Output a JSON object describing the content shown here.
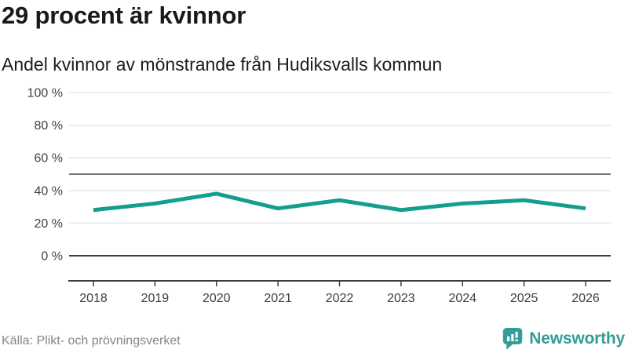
{
  "header": {
    "title": "29 procent är kvinnor",
    "subtitle": "Andel kvinnor av mönstrande från Hudiksvalls kommun"
  },
  "chart_data": {
    "type": "line",
    "title": "29 procent är kvinnor",
    "subtitle": "Andel kvinnor av mönstrande från Hudiksvalls kommun",
    "categories": [
      "2018",
      "2019",
      "2020",
      "2021",
      "2022",
      "2023",
      "2024",
      "2025",
      "2026"
    ],
    "series": [
      {
        "name": "Andel kvinnor av mönstrande",
        "values": [
          28,
          32,
          38,
          29,
          34,
          28,
          32,
          34,
          29
        ]
      }
    ],
    "unit": "%",
    "ylim": [
      0,
      100
    ],
    "yticks": [
      0,
      20,
      40,
      60,
      80,
      100
    ],
    "ytick_labels": [
      "0 %",
      "20 %",
      "40 %",
      "60 %",
      "80 %",
      "100 %"
    ],
    "reference_line": 50,
    "grid": true,
    "legend": "none"
  },
  "colors": {
    "line": "#149e8d",
    "grid": "#e2e2e2",
    "reference": "#757575",
    "axis": "#3d3d3d",
    "brand": "#339e97"
  },
  "footer": {
    "source": "Källa: Plikt- och prövningsverket",
    "brand_name": "Newsworthy"
  }
}
